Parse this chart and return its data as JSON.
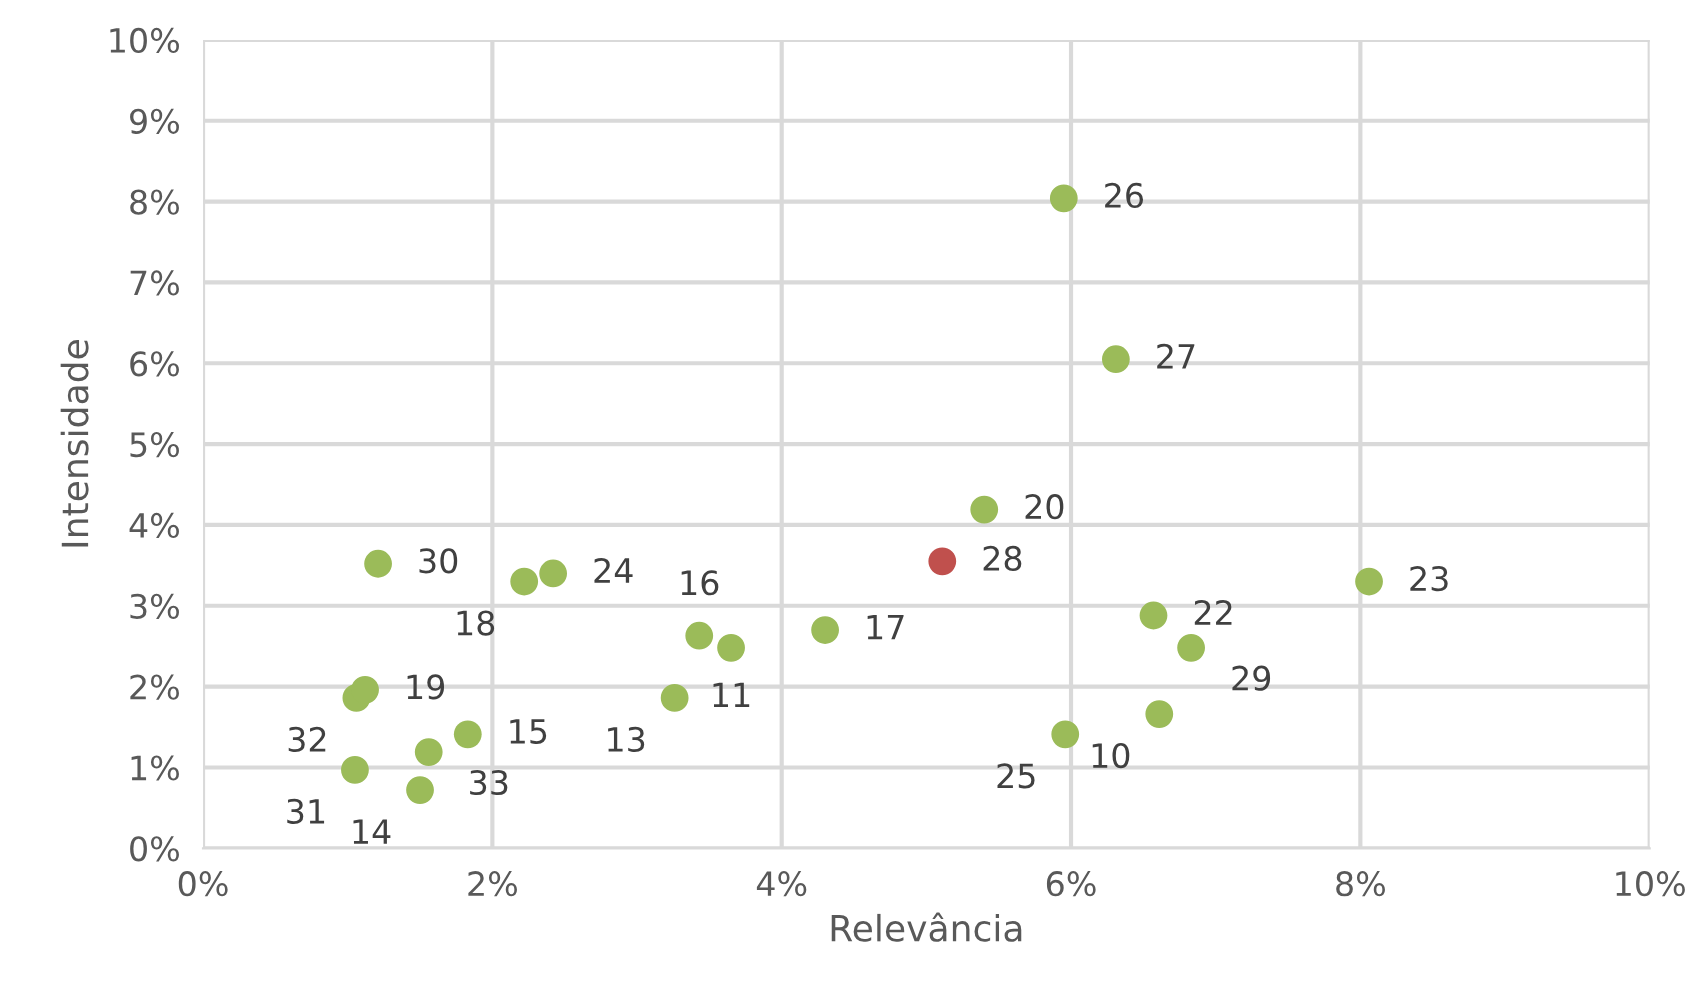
{
  "chart_data": {
    "type": "scatter",
    "xlabel": "Relevância",
    "ylabel": "Intensidade",
    "x": [
      5.95,
      6.31,
      5.4,
      5.11,
      8.06,
      6.57,
      6.83,
      6.61,
      5.96,
      4.3,
      3.65,
      3.43,
      3.26,
      2.42,
      2.22,
      1.21,
      1.12,
      1.06,
      1.56,
      1.83,
      1.5,
      1.05
    ],
    "values": [
      8.04,
      6.05,
      4.19,
      3.55,
      3.3,
      2.88,
      2.48,
      1.66,
      1.41,
      2.7,
      2.48,
      2.63,
      1.86,
      3.4,
      3.3,
      3.52,
      1.96,
      1.86,
      1.19,
      1.41,
      0.72,
      0.97
    ],
    "colors": [
      "#9bbb59",
      "#9bbb59",
      "#9bbb59",
      "#c0504d",
      "#9bbb59",
      "#9bbb59",
      "#9bbb59",
      "#9bbb59",
      "#9bbb59",
      "#9bbb59",
      "#9bbb59",
      "#9bbb59",
      "#9bbb59",
      "#9bbb59",
      "#9bbb59",
      "#9bbb59",
      "#9bbb59",
      "#9bbb59",
      "#9bbb59",
      "#9bbb59",
      "#9bbb59",
      "#9bbb59"
    ],
    "annotations": [
      {
        "text": "26",
        "x": 5.95,
        "y": 8.04
      },
      {
        "text": "27",
        "x": 6.31,
        "y": 6.05
      },
      {
        "text": "20",
        "x": 5.4,
        "y": 4.19
      },
      {
        "text": "28",
        "x": 5.11,
        "y": 3.55
      },
      {
        "text": "23",
        "x": 8.06,
        "y": 3.3
      },
      {
        "text": "22",
        "x": 6.57,
        "y": 2.88
      },
      {
        "text": "29",
        "x": 6.83,
        "y": 2.48
      },
      {
        "text": "10",
        "x": 6.61,
        "y": 1.66
      },
      {
        "text": "25",
        "x": 5.96,
        "y": 1.41
      },
      {
        "text": "17",
        "x": 4.3,
        "y": 2.7
      },
      {
        "text": "11",
        "x": 3.65,
        "y": 2.48
      },
      {
        "text": "16",
        "x": 3.43,
        "y": 2.63
      },
      {
        "text": "13",
        "x": 3.26,
        "y": 1.86
      },
      {
        "text": "24",
        "x": 2.42,
        "y": 3.4
      },
      {
        "text": "18",
        "x": 2.22,
        "y": 3.3
      },
      {
        "text": "30",
        "x": 1.21,
        "y": 3.52
      },
      {
        "text": "19",
        "x": 1.12,
        "y": 1.96
      },
      {
        "text": "32",
        "x": 1.06,
        "y": 1.86
      },
      {
        "text": "33",
        "x": 1.56,
        "y": 1.19
      },
      {
        "text": "15",
        "x": 1.83,
        "y": 1.41
      },
      {
        "text": "14",
        "x": 1.5,
        "y": 0.72
      },
      {
        "text": "31",
        "x": 1.05,
        "y": 0.97
      }
    ],
    "marker": "circle",
    "grid": true,
    "xlim": [
      0,
      10
    ],
    "ylim": [
      0,
      10
    ],
    "xticks": [
      {
        "value": 0,
        "label": "0%"
      },
      {
        "value": 2,
        "label": "2%"
      },
      {
        "value": 4,
        "label": "4%"
      },
      {
        "value": 6,
        "label": "6%"
      },
      {
        "value": 8,
        "label": "8%"
      },
      {
        "value": 10,
        "label": "10%"
      }
    ],
    "yticks": [
      {
        "value": 0,
        "label": "0%"
      },
      {
        "value": 1,
        "label": "1%"
      },
      {
        "value": 2,
        "label": "2%"
      },
      {
        "value": 3,
        "label": "3%"
      },
      {
        "value": 4,
        "label": "4%"
      },
      {
        "value": 5,
        "label": "5%"
      },
      {
        "value": 6,
        "label": "6%"
      },
      {
        "value": 7,
        "label": "7%"
      },
      {
        "value": 8,
        "label": "8%"
      },
      {
        "value": 9,
        "label": "9%"
      },
      {
        "value": 10,
        "label": "10%"
      }
    ]
  }
}
